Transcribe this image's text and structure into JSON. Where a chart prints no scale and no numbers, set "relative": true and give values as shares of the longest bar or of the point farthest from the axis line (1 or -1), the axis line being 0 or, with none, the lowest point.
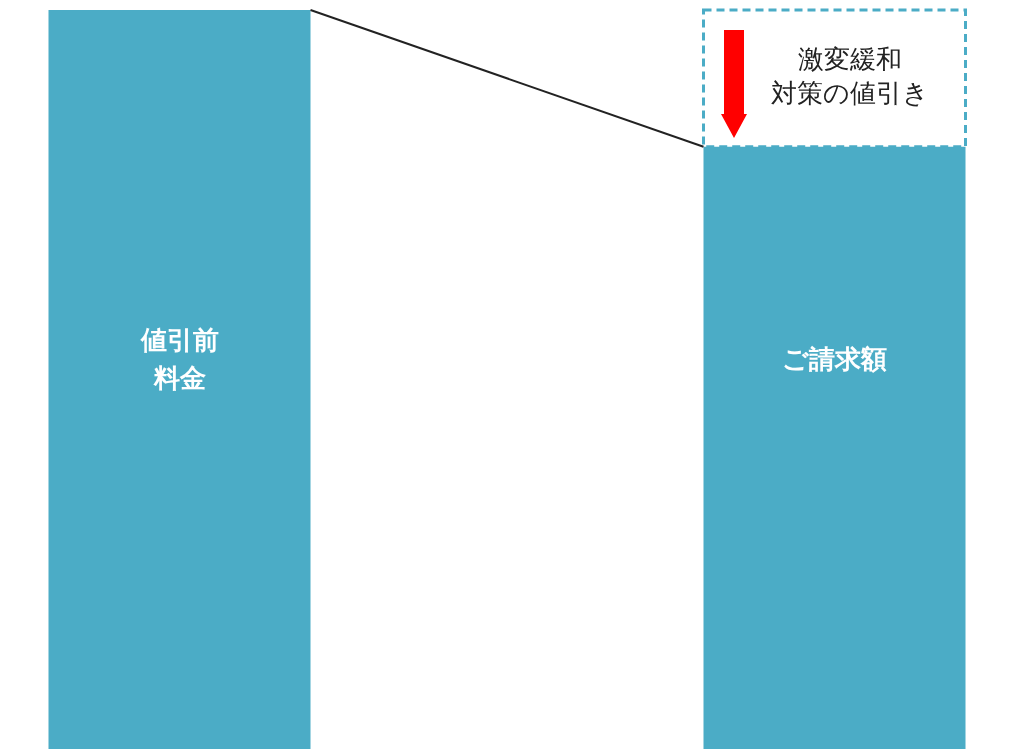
{
  "chart_data": {
    "type": "bar",
    "relative": true,
    "stacked": true,
    "categories": [
      "値引前料金",
      "ご請求額"
    ],
    "series": [
      {
        "color": "#4bacc6",
        "values": [
          1,
          0.815
        ]
      },
      {
        "name": "激変緩和対策の値引き",
        "color": "#4bacc6",
        "values": [
          null,
          0.185
        ]
      }
    ],
    "legend": false,
    "tick_labels": false
  }
}
